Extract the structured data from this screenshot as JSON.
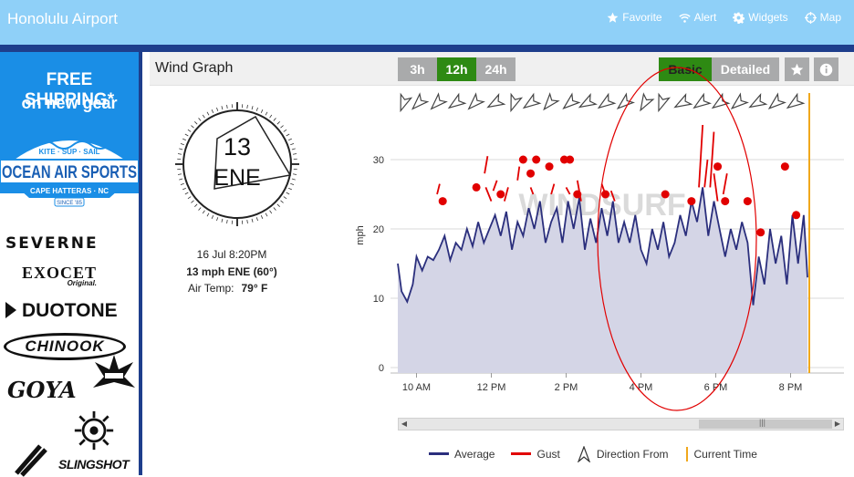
{
  "topbar": {
    "title": "Honolulu Airport",
    "nav": [
      {
        "label": "Favorite",
        "icon": "star-icon"
      },
      {
        "label": "Alert",
        "icon": "wifi-icon"
      },
      {
        "label": "Widgets",
        "icon": "gear-icon"
      },
      {
        "label": "Map",
        "icon": "crosshair-icon"
      }
    ]
  },
  "sidebar": {
    "promo_line1": "FREE SHIPPING*",
    "promo_line2": "on new gear",
    "shop_tagline": "KITE · SUP · SAIL",
    "shop_name": "OCEAN AIR SPORTS",
    "shop_location": "CAPE HATTERAS · NC",
    "shop_since": "SINCE '85",
    "brands": [
      "SEVERNE",
      "EXOCET",
      "DUOTONE",
      "CHINOOK",
      "GOYA",
      "SLINGSHOT"
    ],
    "exocet_sub": "Original."
  },
  "panel": {
    "title": "Wind Graph",
    "ranges": [
      "3h",
      "12h",
      "24h"
    ],
    "active_range": "12h",
    "views": [
      "Basic",
      "Detailed"
    ],
    "active_view": "Basic"
  },
  "current": {
    "speed": "13",
    "direction": "ENE",
    "timestamp": "16 Jul 8:20PM",
    "summary": "13 mph ENE (60°)",
    "air_temp_label": "Air Temp:",
    "air_temp_value": "79° F"
  },
  "colors": {
    "average": "#2b2f7d",
    "average_fill": "#d4d5e6",
    "gust": "#e10000",
    "current_time": "#f0a81c",
    "active_button": "#2e8a13",
    "header": "#8fd0f8"
  },
  "chart_data": {
    "type": "area",
    "ylabel": "mph",
    "ylim": [
      0,
      40
    ],
    "yticks": [
      0,
      10,
      20,
      30
    ],
    "x_ticks": [
      {
        "h": 10,
        "label": "10 AM"
      },
      {
        "h": 12,
        "label": "12 PM"
      },
      {
        "h": 14,
        "label": "2 PM"
      },
      {
        "h": 16,
        "label": "4 PM"
      },
      {
        "h": 18,
        "label": "6 PM"
      },
      {
        "h": 20,
        "label": "8 PM"
      }
    ],
    "xlim": [
      9.5,
      21.2
    ],
    "current_time_h": 20.5,
    "average": [
      [
        9.5,
        15
      ],
      [
        9.6,
        11
      ],
      [
        9.75,
        9.5
      ],
      [
        9.9,
        12
      ],
      [
        10,
        16
      ],
      [
        10.15,
        14
      ],
      [
        10.3,
        16
      ],
      [
        10.45,
        15.5
      ],
      [
        10.6,
        17
      ],
      [
        10.75,
        19
      ],
      [
        10.9,
        15.5
      ],
      [
        11.05,
        18
      ],
      [
        11.2,
        17
      ],
      [
        11.35,
        20
      ],
      [
        11.5,
        17.5
      ],
      [
        11.65,
        21
      ],
      [
        11.8,
        18
      ],
      [
        11.95,
        20
      ],
      [
        12.1,
        22
      ],
      [
        12.25,
        19
      ],
      [
        12.4,
        22.5
      ],
      [
        12.55,
        17
      ],
      [
        12.7,
        21
      ],
      [
        12.85,
        19
      ],
      [
        13,
        23
      ],
      [
        13.15,
        20
      ],
      [
        13.3,
        24
      ],
      [
        13.45,
        18
      ],
      [
        13.6,
        21
      ],
      [
        13.75,
        23
      ],
      [
        13.9,
        18
      ],
      [
        14.05,
        24
      ],
      [
        14.2,
        20
      ],
      [
        14.35,
        24.5
      ],
      [
        14.5,
        17
      ],
      [
        14.65,
        21.5
      ],
      [
        14.8,
        18
      ],
      [
        14.95,
        23
      ],
      [
        15.1,
        19
      ],
      [
        15.25,
        24
      ],
      [
        15.4,
        18
      ],
      [
        15.55,
        21
      ],
      [
        15.7,
        18
      ],
      [
        15.85,
        22
      ],
      [
        16,
        17
      ],
      [
        16.15,
        15
      ],
      [
        16.3,
        20
      ],
      [
        16.45,
        17
      ],
      [
        16.6,
        21
      ],
      [
        16.75,
        16
      ],
      [
        16.9,
        18
      ],
      [
        17.05,
        22
      ],
      [
        17.2,
        19
      ],
      [
        17.35,
        24
      ],
      [
        17.5,
        21
      ],
      [
        17.65,
        26
      ],
      [
        17.8,
        19
      ],
      [
        17.95,
        24
      ],
      [
        18.1,
        20
      ],
      [
        18.25,
        16
      ],
      [
        18.4,
        20
      ],
      [
        18.55,
        17
      ],
      [
        18.7,
        21
      ],
      [
        18.85,
        18
      ],
      [
        19,
        9
      ],
      [
        19.15,
        16
      ],
      [
        19.3,
        12
      ],
      [
        19.45,
        20
      ],
      [
        19.6,
        15
      ],
      [
        19.75,
        19
      ],
      [
        19.9,
        12
      ],
      [
        20.05,
        22
      ],
      [
        20.2,
        15
      ],
      [
        20.35,
        22
      ],
      [
        20.45,
        13
      ]
    ],
    "gust": [
      [
        10.7,
        24
      ],
      [
        11.6,
        26
      ],
      [
        12.25,
        25
      ],
      [
        12.85,
        30
      ],
      [
        13.05,
        28
      ],
      [
        13.2,
        30
      ],
      [
        13.55,
        29
      ],
      [
        13.95,
        30
      ],
      [
        14.1,
        30
      ],
      [
        14.3,
        25
      ],
      [
        15.05,
        25
      ],
      [
        16.65,
        25
      ],
      [
        17.35,
        24
      ],
      [
        18.05,
        29
      ],
      [
        18.25,
        24
      ],
      [
        18.85,
        24
      ],
      [
        19.2,
        19.5
      ],
      [
        19.85,
        29
      ],
      [
        20.15,
        22
      ]
    ],
    "gust_streaks": [
      [
        [
          10.55,
          25
        ],
        [
          10.62,
          26.5
        ]
      ],
      [
        [
          11.82,
          28
        ],
        [
          11.9,
          30.5
        ]
      ],
      [
        [
          11.85,
          26
        ],
        [
          12,
          24
        ]
      ],
      [
        [
          12.05,
          25.5
        ],
        [
          12.15,
          27
        ]
      ],
      [
        [
          12.35,
          24
        ],
        [
          12.45,
          26
        ]
      ],
      [
        [
          12.7,
          27
        ],
        [
          12.75,
          29
        ]
      ],
      [
        [
          13.05,
          26
        ],
        [
          13.12,
          25
        ]
      ],
      [
        [
          13.6,
          25
        ],
        [
          13.68,
          26.5
        ]
      ],
      [
        [
          14,
          26
        ],
        [
          14.1,
          25
        ]
      ],
      [
        [
          14.3,
          27
        ],
        [
          14.4,
          24
        ]
      ],
      [
        [
          14.95,
          26.5
        ],
        [
          15.05,
          25
        ]
      ],
      [
        [
          15.2,
          25.5
        ],
        [
          15.3,
          24
        ]
      ],
      [
        [
          17.55,
          26
        ],
        [
          17.65,
          35
        ]
      ],
      [
        [
          17.7,
          26
        ],
        [
          17.78,
          30
        ]
      ],
      [
        [
          17.85,
          26
        ],
        [
          17.95,
          34
        ]
      ],
      [
        [
          17.95,
          28
        ],
        [
          18.05,
          24
        ]
      ],
      [
        [
          18.2,
          25
        ],
        [
          18.3,
          28
        ]
      ]
    ],
    "direction_arrows": [
      {
        "h": 9.65,
        "deg": 200
      },
      {
        "h": 10.05,
        "deg": 225
      },
      {
        "h": 10.55,
        "deg": 225
      },
      {
        "h": 11.05,
        "deg": 235
      },
      {
        "h": 11.55,
        "deg": 225
      },
      {
        "h": 12.1,
        "deg": 240
      },
      {
        "h": 12.6,
        "deg": 200
      },
      {
        "h": 13.05,
        "deg": 235
      },
      {
        "h": 13.55,
        "deg": 220
      },
      {
        "h": 14.1,
        "deg": 230
      },
      {
        "h": 14.55,
        "deg": 240
      },
      {
        "h": 15.05,
        "deg": 235
      },
      {
        "h": 15.55,
        "deg": 230
      },
      {
        "h": 16.1,
        "deg": 210
      },
      {
        "h": 16.55,
        "deg": 200
      },
      {
        "h": 17.1,
        "deg": 240
      },
      {
        "h": 17.6,
        "deg": 235
      },
      {
        "h": 18.1,
        "deg": 235
      },
      {
        "h": 18.6,
        "deg": 230
      },
      {
        "h": 19.1,
        "deg": 240
      },
      {
        "h": 19.6,
        "deg": 230
      },
      {
        "h": 20.1,
        "deg": 235
      }
    ],
    "watermark": "WINDSURF",
    "legend": [
      "Average",
      "Gust",
      "Direction From",
      "Current Time"
    ]
  }
}
